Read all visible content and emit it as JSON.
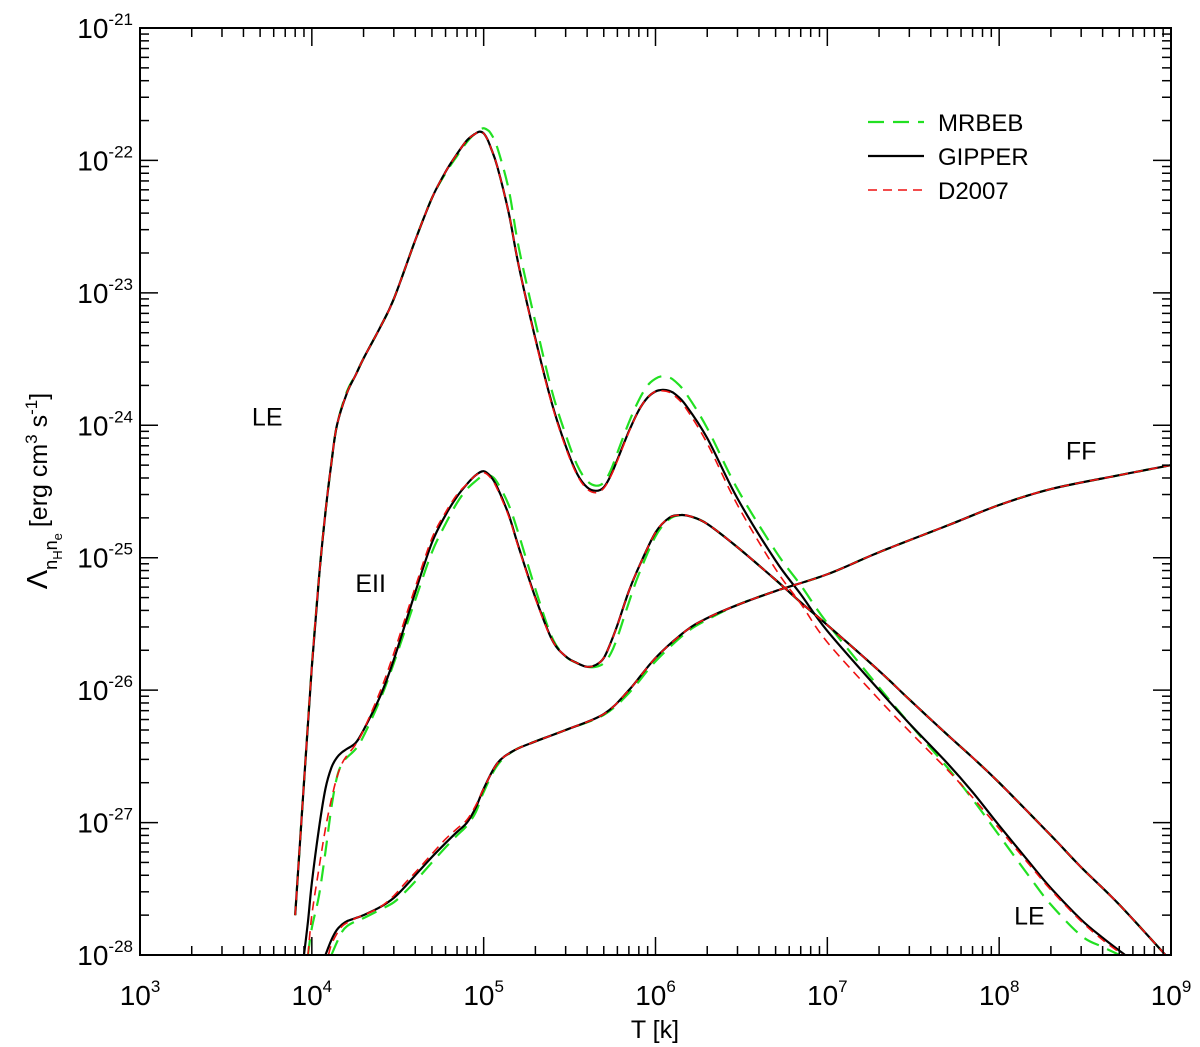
{
  "chart_data": {
    "type": "line",
    "title": "",
    "xlabel": "T [k]",
    "ylabel": "Λ_{n_H n_e} [erg cm^3 s^-1]",
    "x_scale": "log",
    "y_scale": "log",
    "xlim": [
      1000,
      1000000000
    ],
    "ylim": [
      1e-28,
      1e-21
    ],
    "x_ticks": [
      {
        "value": 1000,
        "base": "10",
        "exp": "3"
      },
      {
        "value": 10000,
        "base": "10",
        "exp": "4"
      },
      {
        "value": 100000,
        "base": "10",
        "exp": "5"
      },
      {
        "value": 1000000,
        "base": "10",
        "exp": "6"
      },
      {
        "value": 10000000,
        "base": "10",
        "exp": "7"
      },
      {
        "value": 100000000,
        "base": "10",
        "exp": "8"
      },
      {
        "value": 1000000000,
        "base": "10",
        "exp": "9"
      }
    ],
    "y_ticks": [
      {
        "value": 1e-28,
        "base": "10",
        "exp": "-28"
      },
      {
        "value": 1e-27,
        "base": "10",
        "exp": "-27"
      },
      {
        "value": 1e-26,
        "base": "10",
        "exp": "-26"
      },
      {
        "value": 1e-25,
        "base": "10",
        "exp": "-25"
      },
      {
        "value": 1e-24,
        "base": "10",
        "exp": "-24"
      },
      {
        "value": 1e-23,
        "base": "10",
        "exp": "-23"
      },
      {
        "value": 1e-22,
        "base": "10",
        "exp": "-22"
      },
      {
        "value": 1e-21,
        "base": "10",
        "exp": "-21"
      }
    ],
    "legend_position": "top-right",
    "legend": [
      {
        "name": "MRBEB",
        "color": "#22e022",
        "style": "dashed-long"
      },
      {
        "name": "GIPPER",
        "color": "#000000",
        "style": "solid"
      },
      {
        "name": "D2007",
        "color": "#ee1111",
        "style": "dashed-short"
      }
    ],
    "annotations": [
      {
        "text": "LE",
        "x": 5500,
        "y": 1e-24
      },
      {
        "text": "EII",
        "x": 22000,
        "y": 5.5e-26
      },
      {
        "text": "FF",
        "x": 300000000,
        "y": 5.5e-25
      },
      {
        "text": "LE",
        "x": 150000000,
        "y": 1.7e-28
      }
    ],
    "series": [
      {
        "group": "LE",
        "name": "MRBEB",
        "legend_ref": "MRBEB",
        "x": [
          8000,
          9000,
          10000,
          11000,
          12000,
          13000,
          14000,
          16000,
          18000,
          20000,
          25000,
          30000,
          40000,
          50000,
          60000,
          70000,
          80000,
          90000,
          95000,
          100000,
          105000,
          110000,
          120000,
          140000,
          160000,
          200000,
          250000,
          300000,
          350000,
          400000,
          450000,
          500000,
          550000,
          600000,
          700000,
          800000,
          900000,
          1000000,
          1100000,
          1200000,
          1300000,
          1500000,
          2000000,
          3000000,
          5000000,
          7000000,
          10000000,
          20000000,
          30000000,
          50000000,
          70000000,
          100000000,
          150000000,
          200000000,
          300000000,
          400000000,
          500000000,
          550000000
        ],
        "y": [
          2e-28,
          2e-27,
          1.5e-26,
          7e-26,
          2.2e-25,
          5.2e-25,
          1e-24,
          1.8e-24,
          2.4e-24,
          3.2e-24,
          5.5e-24,
          9e-24,
          2.5e-23,
          5.2e-23,
          8e-23,
          1.08e-22,
          1.38e-22,
          1.62e-22,
          1.7e-22,
          1.75e-22,
          1.7e-22,
          1.6e-22,
          1.25e-22,
          6e-23,
          2.2e-23,
          6e-24,
          1.8e-24,
          8.5e-25,
          5e-25,
          3.8e-25,
          3.5e-25,
          3.7e-25,
          4.6e-25,
          6.2e-25,
          1.05e-24,
          1.55e-24,
          2e-24,
          2.25e-24,
          2.35e-24,
          2.3e-24,
          2.15e-24,
          1.75e-24,
          9.5e-25,
          3.3e-25,
          1.12e-25,
          6.2e-26,
          3.2e-26,
          1.05e-26,
          5.6e-27,
          2.6e-27,
          1.5e-27,
          8e-28,
          3.9e-28,
          2.4e-28,
          1.4e-28,
          1.15e-28,
          1e-28,
          9e-29
        ]
      },
      {
        "group": "LE",
        "name": "GIPPER",
        "legend_ref": "GIPPER",
        "x": [
          8000,
          9000,
          10000,
          11000,
          12000,
          13000,
          14000,
          16000,
          18000,
          20000,
          25000,
          30000,
          40000,
          50000,
          60000,
          70000,
          80000,
          90000,
          95000,
          100000,
          105000,
          110000,
          120000,
          140000,
          160000,
          200000,
          250000,
          300000,
          350000,
          400000,
          450000,
          500000,
          550000,
          600000,
          700000,
          800000,
          900000,
          1000000,
          1100000,
          1200000,
          1300000,
          1500000,
          2000000,
          3000000,
          5000000,
          7000000,
          10000000,
          20000000,
          30000000,
          50000000,
          70000000,
          100000000,
          150000000,
          200000000,
          300000000,
          400000000,
          500000000,
          600000000
        ],
        "y": [
          2e-28,
          2e-27,
          1.5e-26,
          7e-26,
          2.2e-25,
          5.2e-25,
          1e-24,
          1.75e-24,
          2.4e-24,
          3.2e-24,
          5.5e-24,
          9e-24,
          2.5e-23,
          5.2e-23,
          8.2e-23,
          1.12e-22,
          1.42e-22,
          1.6e-22,
          1.65e-22,
          1.6e-22,
          1.45e-22,
          1.25e-22,
          9e-23,
          4e-23,
          1.6e-23,
          4.5e-24,
          1.45e-24,
          7e-25,
          4.3e-25,
          3.4e-25,
          3.2e-25,
          3.4e-25,
          4.2e-25,
          5.5e-25,
          9e-25,
          1.3e-24,
          1.62e-24,
          1.8e-24,
          1.85e-24,
          1.82e-24,
          1.72e-24,
          1.42e-24,
          8e-25,
          2.8e-25,
          9.5e-26,
          5.3e-26,
          2.8e-26,
          1e-26,
          5.6e-27,
          2.8e-27,
          1.7e-27,
          9.5e-28,
          5e-28,
          3.2e-28,
          1.85e-28,
          1.35e-28,
          1.08e-28,
          9e-29
        ]
      },
      {
        "group": "LE",
        "name": "D2007",
        "legend_ref": "D2007",
        "x": [
          8000,
          9000,
          10000,
          11000,
          12000,
          13000,
          14000,
          16000,
          18000,
          20000,
          25000,
          30000,
          40000,
          50000,
          60000,
          70000,
          80000,
          90000,
          95000,
          100000,
          105000,
          110000,
          120000,
          140000,
          160000,
          200000,
          250000,
          300000,
          350000,
          400000,
          450000,
          500000,
          550000,
          600000,
          700000,
          800000,
          900000,
          1000000,
          1100000,
          1200000,
          1300000,
          1500000,
          2000000,
          3000000,
          5000000,
          7000000,
          10000000,
          20000000,
          30000000,
          50000000,
          70000000,
          100000000,
          150000000,
          200000000,
          300000000,
          400000000,
          500000000,
          600000000
        ],
        "y": [
          2e-28,
          2e-27,
          1.5e-26,
          7e-26,
          2.2e-25,
          5.2e-25,
          1e-24,
          1.75e-24,
          2.4e-24,
          3.2e-24,
          5.5e-24,
          9e-24,
          2.5e-23,
          5.2e-23,
          8.2e-23,
          1.12e-22,
          1.42e-22,
          1.6e-22,
          1.65e-22,
          1.6e-22,
          1.45e-22,
          1.25e-22,
          9e-23,
          4e-23,
          1.6e-23,
          4.4e-24,
          1.42e-24,
          6.8e-25,
          4.2e-25,
          3.3e-25,
          3.1e-25,
          3.35e-25,
          4.15e-25,
          5.4e-25,
          8.9e-25,
          1.3e-24,
          1.62e-24,
          1.8e-24,
          1.82e-24,
          1.78e-24,
          1.66e-24,
          1.35e-24,
          7.3e-25,
          2.5e-25,
          8.2e-26,
          4.5e-26,
          2.3e-26,
          8.5e-27,
          4.9e-27,
          2.5e-27,
          1.55e-27,
          9e-28,
          4.8e-28,
          3.1e-28,
          1.8e-28,
          1.3e-28,
          1.05e-28,
          8.8e-29
        ]
      },
      {
        "group": "EII",
        "name": "MRBEB",
        "legend_ref": "MRBEB",
        "x": [
          9500,
          10000,
          11000,
          12000,
          13000,
          14000,
          15000,
          16000,
          18000,
          20000,
          25000,
          30000,
          40000,
          50000,
          60000,
          70000,
          80000,
          90000,
          100000,
          110000,
          120000,
          140000,
          160000,
          200000,
          250000,
          300000,
          350000,
          400000,
          450000,
          500000,
          550000,
          600000,
          700000,
          800000,
          1000000,
          1200000,
          1400000,
          1600000,
          2000000,
          3000000,
          5000000,
          7000000,
          10000000,
          20000000,
          30000000,
          50000000,
          70000000,
          100000000,
          200000000,
          300000000,
          500000000,
          1000000000
        ],
        "y": [
          1e-28,
          1.6e-28,
          2.8e-28,
          6e-28,
          1.3e-27,
          2.2e-27,
          2.8e-27,
          3.1e-27,
          3.6e-27,
          4.5e-27,
          8.5e-27,
          1.6e-26,
          4.8e-26,
          1.1e-25,
          1.8e-25,
          2.6e-25,
          3.3e-25,
          3.8e-25,
          4.2e-25,
          4.15e-25,
          3.7e-25,
          2.5e-25,
          1.5e-25,
          5.8e-26,
          2.5e-26,
          1.8e-26,
          1.6e-26,
          1.5e-26,
          1.5e-26,
          1.6e-26,
          1.9e-26,
          2.5e-26,
          4.6e-26,
          7.5e-26,
          1.45e-25,
          1.95e-25,
          2.1e-25,
          2.05e-25,
          1.8e-25,
          1.2e-25,
          6.8e-26,
          4.6e-26,
          3.1e-26,
          1.4e-26,
          8.5e-27,
          4.6e-27,
          3.1e-27,
          2e-27,
          8e-28,
          4.6e-28,
          2.4e-28,
          9e-29
        ]
      },
      {
        "group": "EII",
        "name": "GIPPER",
        "legend_ref": "GIPPER",
        "x": [
          9000,
          9500,
          10000,
          11000,
          12000,
          13000,
          14000,
          15000,
          16000,
          18000,
          20000,
          25000,
          30000,
          40000,
          50000,
          60000,
          70000,
          80000,
          90000,
          100000,
          110000,
          120000,
          140000,
          160000,
          200000,
          250000,
          300000,
          350000,
          400000,
          450000,
          500000,
          550000,
          600000,
          700000,
          800000,
          1000000,
          1200000,
          1400000,
          1600000,
          2000000,
          3000000,
          5000000,
          7000000,
          10000000,
          20000000,
          30000000,
          50000000,
          70000000,
          100000000,
          200000000,
          300000000,
          500000000,
          1000000000
        ],
        "y": [
          1e-28,
          1.8e-28,
          3.5e-28,
          9e-28,
          1.8e-27,
          2.6e-27,
          3.1e-27,
          3.4e-27,
          3.6e-27,
          4e-27,
          5e-27,
          9e-27,
          1.7e-26,
          5.5e-26,
          1.3e-25,
          2.1e-25,
          2.9e-25,
          3.6e-25,
          4.2e-25,
          4.5e-25,
          4.1e-25,
          3.4e-25,
          2.1e-25,
          1.2e-25,
          5e-26,
          2.4e-26,
          1.8e-26,
          1.6e-26,
          1.5e-26,
          1.55e-26,
          1.75e-26,
          2.3e-26,
          3.1e-26,
          5.6e-26,
          8.5e-26,
          1.55e-25,
          2e-25,
          2.1e-25,
          2.05e-25,
          1.8e-25,
          1.2e-25,
          6.8e-26,
          4.6e-26,
          3.1e-26,
          1.4e-26,
          8.5e-27,
          4.6e-27,
          3.1e-27,
          2e-27,
          8e-28,
          4.6e-28,
          2.4e-28,
          9e-29
        ]
      },
      {
        "group": "EII",
        "name": "D2007",
        "legend_ref": "D2007",
        "x": [
          9500,
          10000,
          11000,
          12000,
          13000,
          14000,
          15000,
          16000,
          18000,
          20000,
          25000,
          30000,
          40000,
          50000,
          60000,
          70000,
          80000,
          90000,
          100000,
          110000,
          120000,
          140000,
          160000,
          200000,
          250000,
          300000,
          350000,
          400000,
          450000,
          500000,
          550000,
          600000,
          700000,
          800000,
          1000000,
          1200000,
          1400000,
          1600000,
          2000000,
          3000000,
          5000000,
          7000000,
          10000000,
          20000000,
          30000000,
          50000000,
          70000000,
          100000000,
          200000000,
          300000000,
          500000000,
          1000000000
        ],
        "y": [
          1e-28,
          2e-28,
          4.5e-28,
          9e-28,
          1.5e-27,
          2.2e-27,
          2.8e-27,
          3.2e-27,
          3.9e-27,
          5e-27,
          9.8e-27,
          1.9e-26,
          6e-26,
          1.4e-25,
          2.2e-25,
          3e-25,
          3.6e-25,
          4.2e-25,
          4.4e-25,
          4e-25,
          3.3e-25,
          2.05e-25,
          1.18e-25,
          4.9e-26,
          2.4e-26,
          1.8e-26,
          1.6e-26,
          1.5e-26,
          1.55e-26,
          1.75e-26,
          2.3e-26,
          3.1e-26,
          5.6e-26,
          8.5e-26,
          1.55e-25,
          2e-25,
          2.1e-25,
          2.05e-25,
          1.8e-25,
          1.2e-25,
          6.8e-26,
          4.6e-26,
          3.1e-26,
          1.4e-26,
          8.5e-27,
          4.6e-27,
          3.1e-27,
          2e-27,
          8e-28,
          4.6e-28,
          2.4e-28,
          9e-29
        ]
      },
      {
        "group": "FF",
        "name": "MRBEB",
        "legend_ref": "MRBEB",
        "x": [
          13000,
          14000,
          15000,
          16000,
          18000,
          20000,
          25000,
          30000,
          35000,
          40000,
          50000,
          60000,
          70000,
          80000,
          90000,
          100000,
          120000,
          150000,
          200000,
          300000,
          500000,
          700000,
          1000000,
          1500000,
          2000000,
          3000000,
          5000000,
          10000000,
          20000000,
          50000000,
          100000000,
          200000000,
          500000000,
          1000000000
        ],
        "y": [
          1e-28,
          1.25e-28,
          1.5e-28,
          1.65e-28,
          1.8e-28,
          1.9e-28,
          2.2e-28,
          2.5e-28,
          3e-28,
          3.6e-28,
          5e-28,
          6.5e-28,
          8e-28,
          9.5e-28,
          1.2e-27,
          1.7e-27,
          2.7e-27,
          3.5e-27,
          4.1e-27,
          5e-27,
          6.5e-27,
          9.5e-27,
          1.65e-26,
          2.7e-26,
          3.4e-26,
          4.4e-26,
          5.6e-26,
          7.5e-26,
          1.1e-25,
          1.75e-25,
          2.5e-25,
          3.3e-25,
          4.2e-25,
          5e-25
        ]
      },
      {
        "group": "FF",
        "name": "GIPPER",
        "legend_ref": "GIPPER",
        "x": [
          12000,
          13000,
          14000,
          15000,
          16000,
          18000,
          20000,
          25000,
          30000,
          35000,
          40000,
          50000,
          60000,
          70000,
          80000,
          90000,
          100000,
          120000,
          150000,
          200000,
          300000,
          500000,
          700000,
          1000000,
          1500000,
          2000000,
          3000000,
          5000000,
          10000000,
          20000000,
          50000000,
          100000000,
          200000000,
          500000000,
          1000000000
        ],
        "y": [
          1e-28,
          1.3e-28,
          1.55e-28,
          1.7e-28,
          1.8e-28,
          1.9e-28,
          2e-28,
          2.3e-28,
          2.7e-28,
          3.3e-28,
          4e-28,
          5.5e-28,
          7e-28,
          8.5e-28,
          1e-27,
          1.3e-27,
          1.8e-27,
          2.8e-27,
          3.5e-27,
          4.1e-27,
          5e-27,
          6.6e-27,
          1e-26,
          1.75e-26,
          2.8e-26,
          3.5e-26,
          4.4e-26,
          5.6e-26,
          7.5e-26,
          1.1e-25,
          1.75e-25,
          2.5e-25,
          3.3e-25,
          4.2e-25,
          5e-25
        ]
      },
      {
        "group": "FF",
        "name": "D2007",
        "legend_ref": "D2007",
        "x": [
          12500,
          13000,
          14000,
          15000,
          16000,
          18000,
          20000,
          25000,
          30000,
          35000,
          40000,
          50000,
          60000,
          70000,
          80000,
          90000,
          100000,
          120000,
          150000,
          200000,
          300000,
          500000,
          700000,
          1000000,
          1500000,
          2000000,
          3000000,
          5000000,
          10000000,
          20000000,
          50000000,
          100000000,
          200000000,
          500000000,
          1000000000
        ],
        "y": [
          1e-28,
          1.2e-28,
          1.45e-28,
          1.65e-28,
          1.75e-28,
          1.9e-28,
          2e-28,
          2.3e-28,
          2.8e-28,
          3.5e-28,
          4.2e-28,
          5.8e-28,
          7.5e-28,
          9e-28,
          1.05e-27,
          1.35e-27,
          1.8e-27,
          2.8e-27,
          3.5e-27,
          4.1e-27,
          5e-27,
          6.6e-27,
          1e-26,
          1.75e-26,
          2.8e-26,
          3.5e-26,
          4.4e-26,
          5.6e-26,
          7.5e-26,
          1.1e-25,
          1.75e-25,
          2.5e-25,
          3.3e-25,
          4.2e-25,
          5e-25
        ]
      }
    ]
  }
}
